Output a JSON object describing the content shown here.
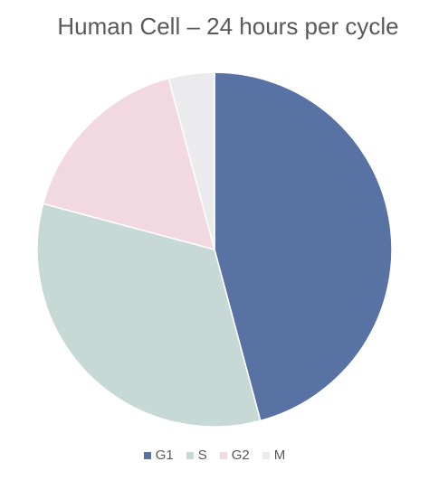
{
  "chart_data": {
    "type": "pie",
    "title": "Human Cell – 24 hours per cycle",
    "legend_position": "bottom",
    "slices": [
      {
        "label": "G1",
        "value": 11,
        "color": "#5872a4"
      },
      {
        "label": "S",
        "value": 8,
        "color": "#c6d9d4"
      },
      {
        "label": "G2",
        "value": 4,
        "color": "#f2d8e0"
      },
      {
        "label": "M",
        "value": 1,
        "color": "#ebebee"
      }
    ]
  }
}
